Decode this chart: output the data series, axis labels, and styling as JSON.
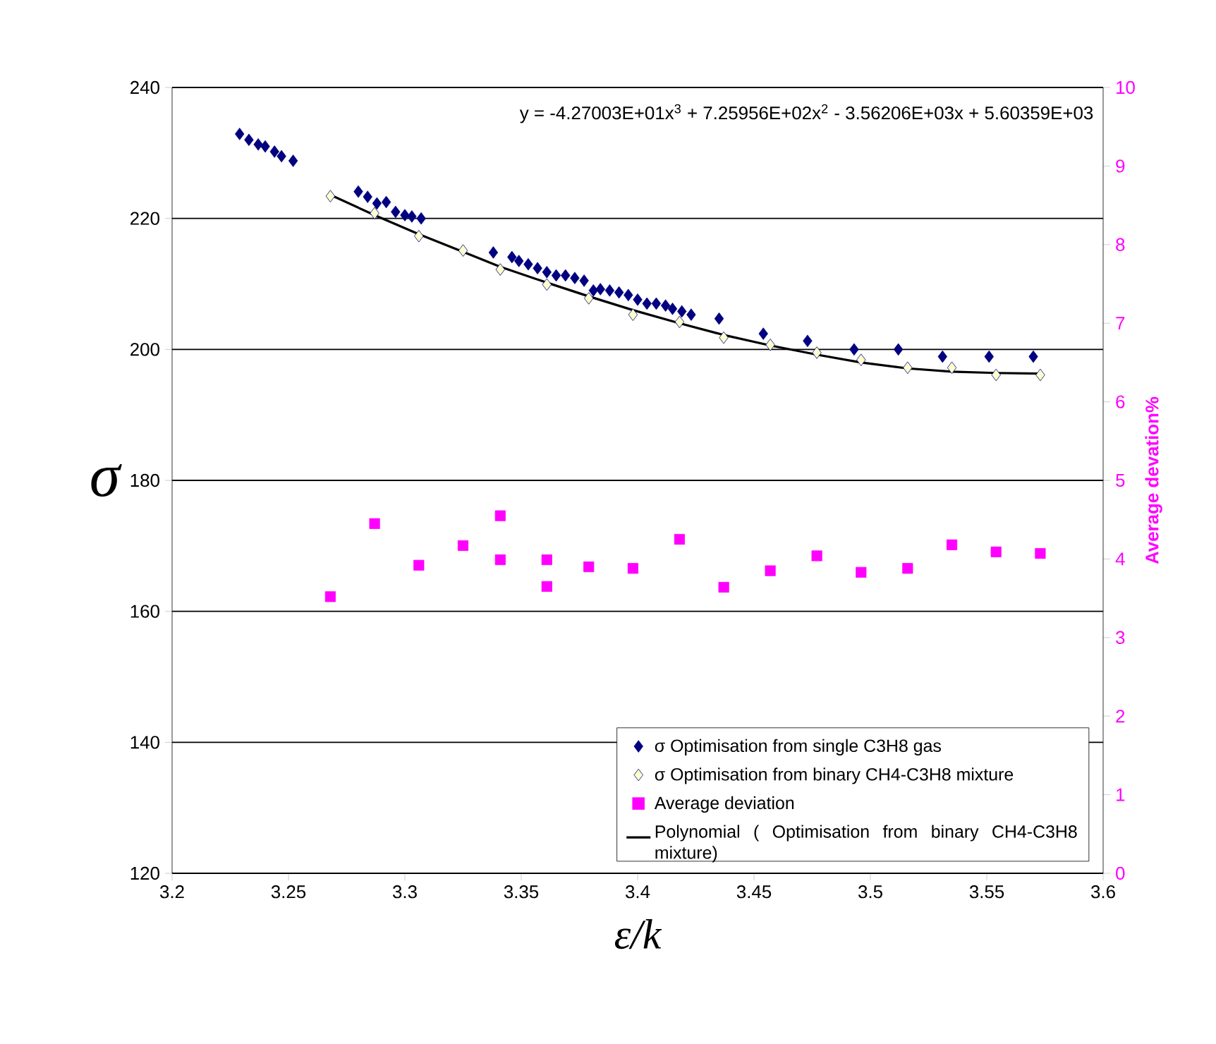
{
  "chart_data": {
    "type": "scatter",
    "xlabel": "ε/k",
    "ylabel": "σ",
    "y2label": "Average devation%",
    "annotations": [
      "y = -4.27003E+01x$^{3}$ + 7.25956E+02x$^{2}$ - 3.56206E+03x + 5.60359E+03"
    ],
    "xlim": [
      3.2,
      3.6
    ],
    "xticks": [
      3.2,
      3.25,
      3.3,
      3.35,
      3.4,
      3.45,
      3.5,
      3.55,
      3.6
    ],
    "ylim": [
      120,
      240
    ],
    "yticks": [
      120,
      140,
      160,
      180,
      200,
      220,
      240
    ],
    "y2lim": [
      0,
      10
    ],
    "y2ticks": [
      0,
      1,
      2,
      3,
      4,
      5,
      6,
      7,
      8,
      9,
      10
    ],
    "grid": "y",
    "legend": "bottom right",
    "series": [
      {
        "name": "σ  Optimisation from single C3H8 gas",
        "marker": "diamond",
        "color": "#000080",
        "x": [
          3.229,
          3.233,
          3.237,
          3.24,
          3.244,
          3.247,
          3.252,
          3.28,
          3.284,
          3.288,
          3.292,
          3.296,
          3.3,
          3.303,
          3.307,
          3.338,
          3.346,
          3.349,
          3.353,
          3.357,
          3.361,
          3.365,
          3.369,
          3.373,
          3.377,
          3.381,
          3.384,
          3.388,
          3.392,
          3.396,
          3.4,
          3.404,
          3.408,
          3.412,
          3.415,
          3.419,
          3.423,
          3.435,
          3.454,
          3.473,
          3.493,
          3.512,
          3.531,
          3.551,
          3.57
        ],
        "values": [
          232.9,
          232.0,
          231.3,
          231.0,
          230.2,
          229.5,
          228.8,
          224.1,
          223.3,
          222.3,
          222.5,
          221.0,
          220.5,
          220.3,
          220.0,
          214.8,
          214.1,
          213.5,
          213.0,
          212.4,
          211.8,
          211.3,
          211.3,
          210.9,
          210.5,
          209.0,
          209.2,
          209.0,
          208.7,
          208.3,
          207.6,
          207.0,
          207.0,
          206.7,
          206.2,
          205.8,
          205.3,
          204.7,
          202.4,
          201.3,
          200.0,
          200.0,
          198.9,
          198.9,
          198.9
        ]
      },
      {
        "name": "σ  Optimisation from binary CH4-C3H8 mixture",
        "marker": "diamond",
        "color": "#000080",
        "x": [
          3.268,
          3.287,
          3.306,
          3.325,
          3.341,
          3.361,
          3.379,
          3.398,
          3.418,
          3.437,
          3.457,
          3.477,
          3.496,
          3.516,
          3.535,
          3.554,
          3.573
        ],
        "values": [
          223.4,
          220.8,
          217.3,
          215.1,
          212.2,
          209.9,
          207.8,
          205.3,
          204.2,
          201.8,
          200.7,
          199.5,
          198.4,
          197.2,
          197.2,
          196.1,
          196.1
        ]
      },
      {
        "name": "Average deviation",
        "marker": "square",
        "color": "#ff00ff",
        "axis": "y2",
        "x": [
          3.268,
          3.287,
          3.306,
          3.325,
          3.341,
          3.341,
          3.361,
          3.361,
          3.379,
          3.398,
          3.418,
          3.437,
          3.457,
          3.477,
          3.496,
          3.516,
          3.535,
          3.554,
          3.573
        ],
        "values": [
          3.52,
          4.45,
          3.92,
          4.17,
          3.99,
          4.55,
          3.65,
          3.99,
          3.9,
          3.88,
          4.25,
          3.64,
          3.85,
          4.04,
          3.83,
          3.88,
          4.18,
          4.09,
          4.07
        ]
      },
      {
        "name": "Polynomial (     Optimisation from binary CH4-C3H8 mixture)",
        "type": "line",
        "marker": "none",
        "line_style": "solid",
        "color": "#000000",
        "x": [
          3.268,
          3.287,
          3.306,
          3.325,
          3.341,
          3.361,
          3.379,
          3.398,
          3.418,
          3.437,
          3.457,
          3.477,
          3.496,
          3.516,
          3.535,
          3.554,
          3.573
        ],
        "values": [
          223.6,
          220.5,
          217.6,
          214.9,
          212.6,
          210.2,
          208.1,
          206.0,
          204.0,
          202.2,
          200.6,
          199.2,
          198.0,
          197.1,
          196.6,
          196.4,
          196.3
        ]
      }
    ]
  }
}
